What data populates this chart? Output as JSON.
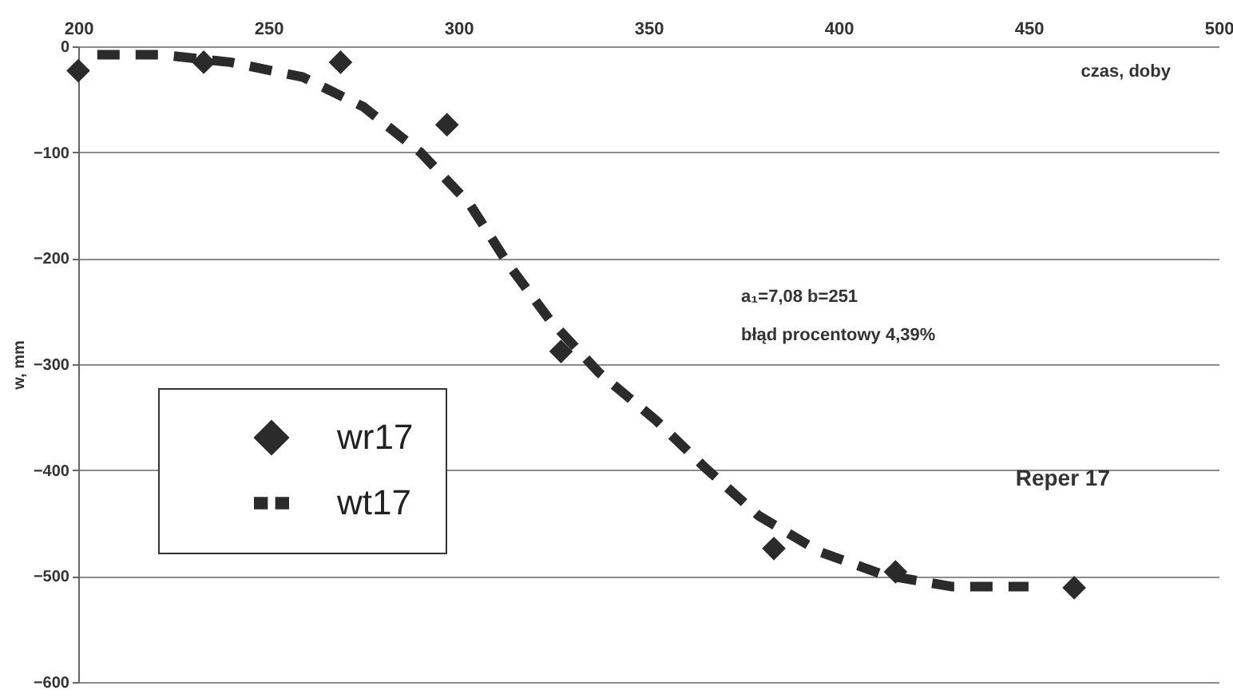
{
  "chart_data": {
    "type": "scatter",
    "xlabel": "czas, doby",
    "ylabel": "w, mm",
    "annotations": [
      "a₁=7,08  b=251",
      "błąd procentowy 4,39%",
      "Reper 17"
    ],
    "xlim": [
      200,
      500
    ],
    "xticks": [
      200,
      250,
      300,
      350,
      400,
      450,
      500
    ],
    "ylim": [
      -600,
      0
    ],
    "yticks": [
      -600,
      -500,
      -400,
      -300,
      -200,
      -100,
      0
    ],
    "grid": "y",
    "legend": "bottom left",
    "series": [
      {
        "name": "wr17",
        "marker": "diamond",
        "color": "#2b2b2b",
        "x": [
          200,
          233,
          269,
          297,
          327,
          383,
          415,
          462
        ],
        "values": [
          -23,
          -15,
          -15,
          -74,
          -288,
          -474,
          -496,
          -511
        ]
      },
      {
        "name": "wt17",
        "type": "line",
        "line_style": "dashed",
        "marker": "none",
        "color": "#2b2b2b",
        "x": [
          205,
          222,
          240,
          259,
          275,
          290,
          303,
          313,
          324,
          337,
          352,
          365,
          379,
          395,
          412,
          430,
          450
        ],
        "values": [
          -8,
          -8,
          -15,
          -29,
          -57,
          -100,
          -149,
          -205,
          -258,
          -308,
          -353,
          -398,
          -443,
          -477,
          -499,
          -510,
          -510
        ]
      }
    ]
  }
}
